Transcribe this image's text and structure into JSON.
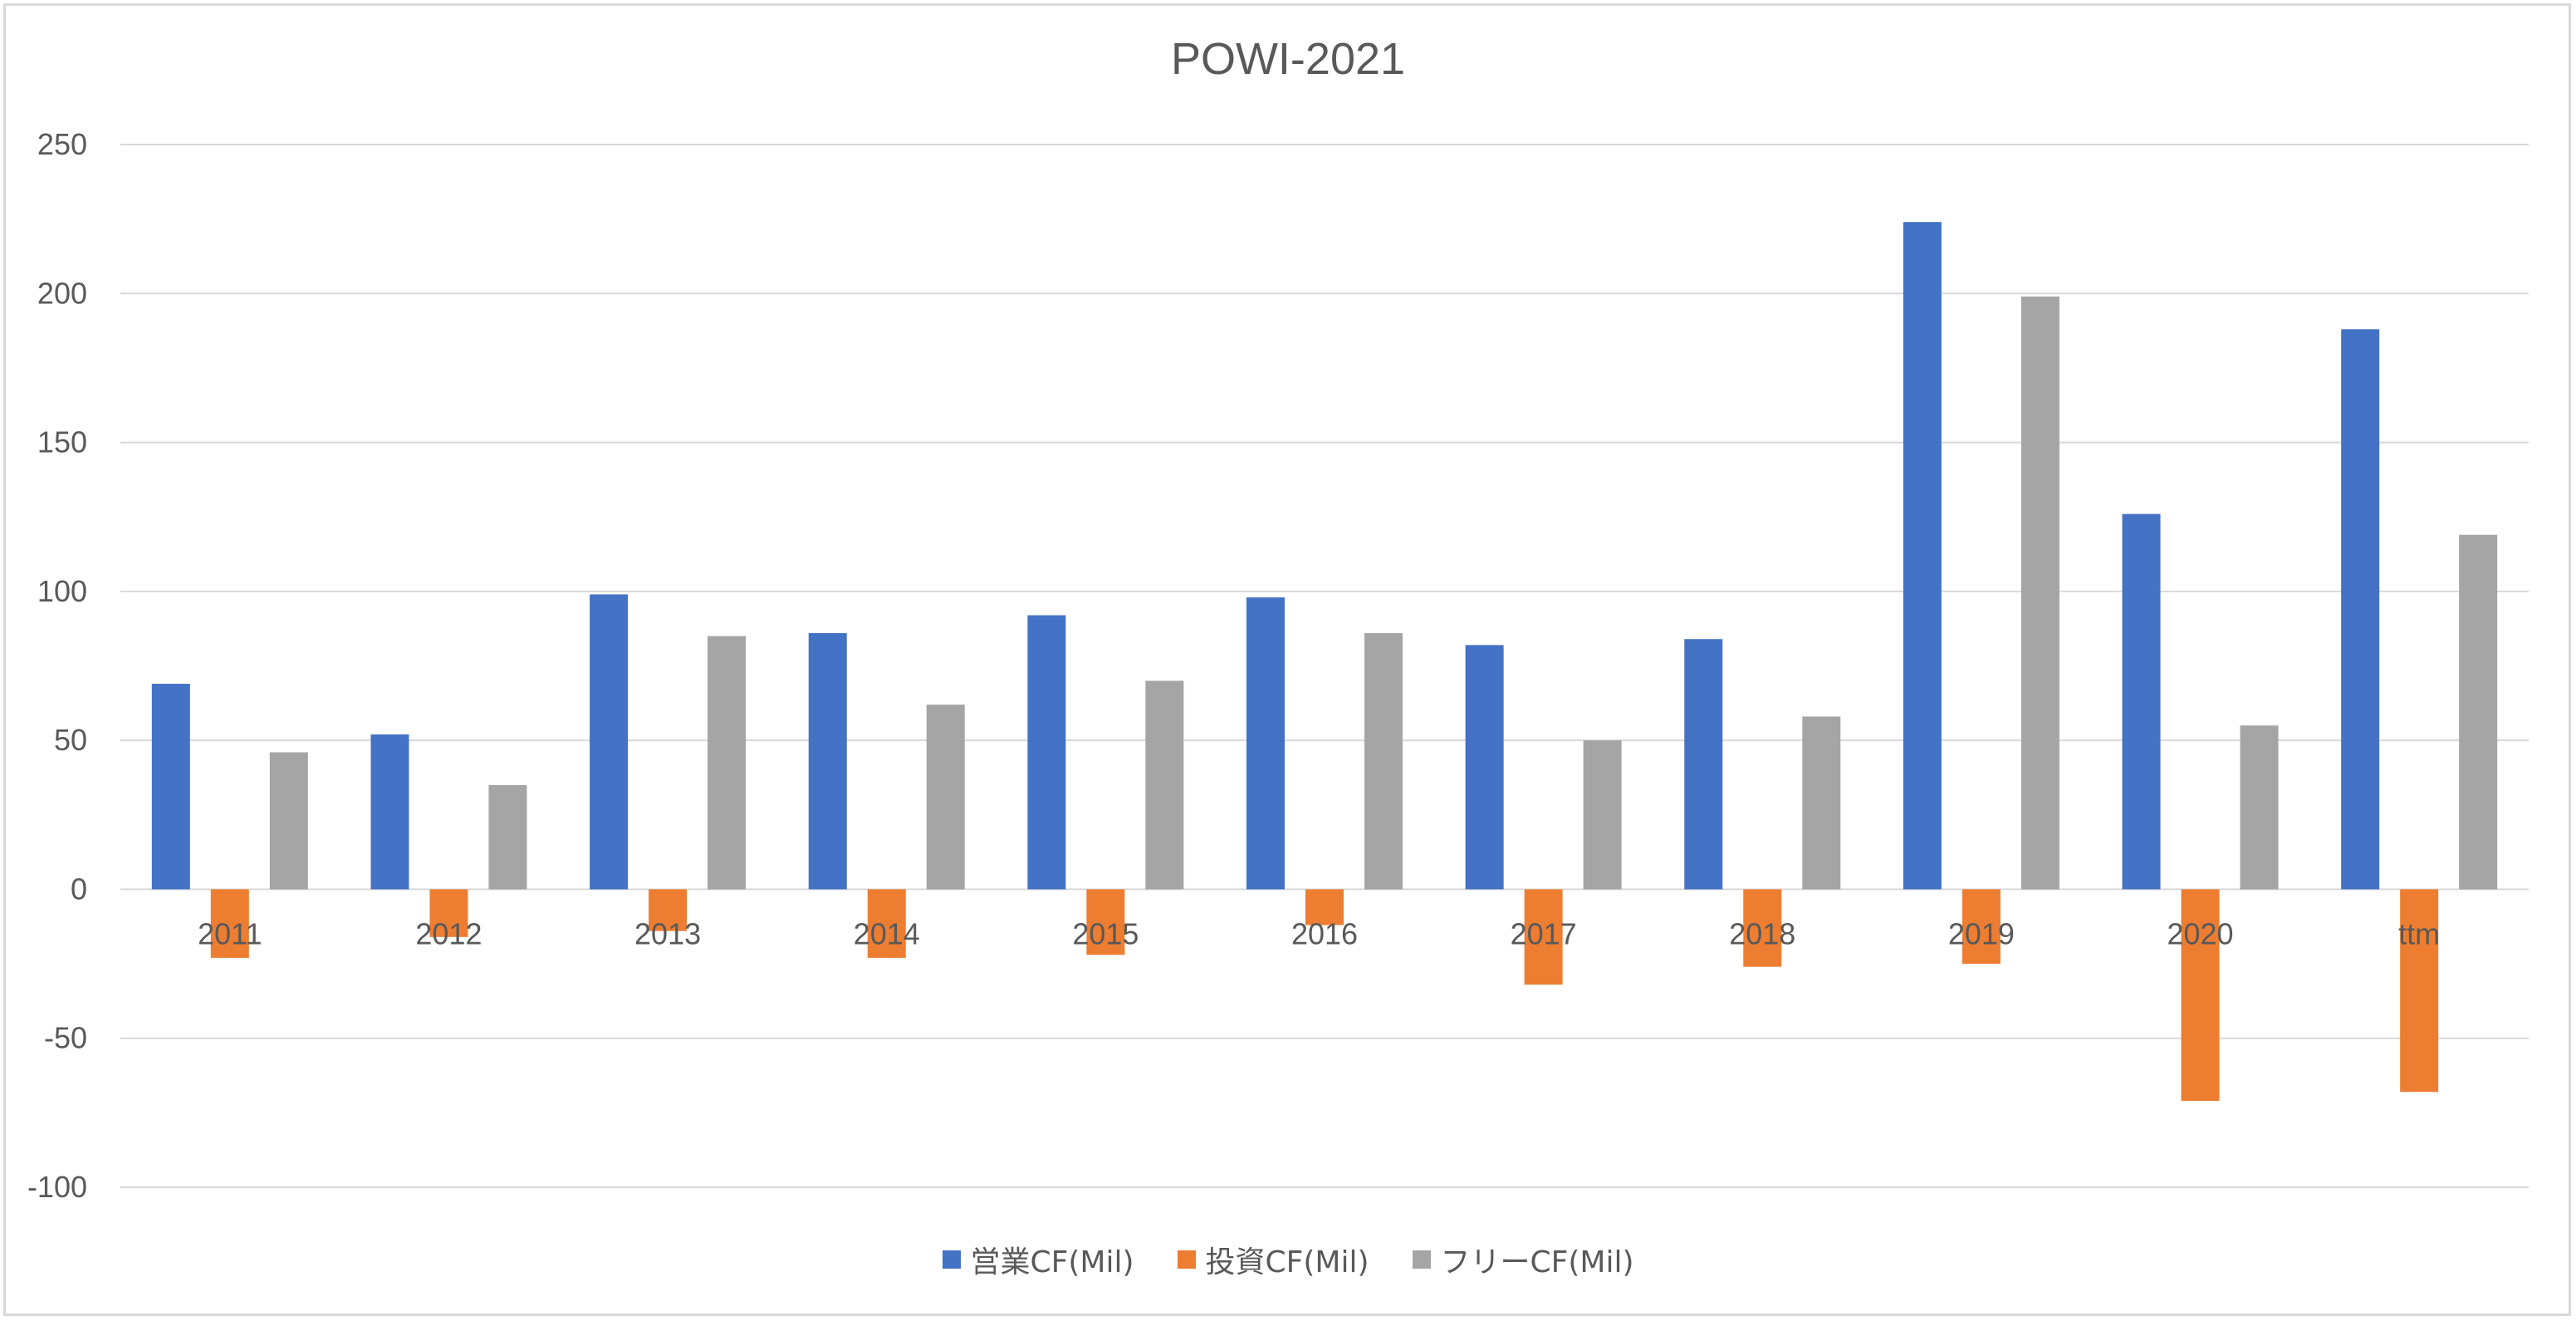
{
  "chart_data": {
    "type": "bar",
    "title": "POWI-2021",
    "categories": [
      "2011",
      "2012",
      "2013",
      "2014",
      "2015",
      "2016",
      "2017",
      "2018",
      "2019",
      "2020",
      "ttm"
    ],
    "series": [
      {
        "name": "営業CF(Mil)",
        "color": "#4472C4",
        "values": [
          69,
          52,
          99,
          86,
          92,
          98,
          82,
          84,
          224,
          126,
          188
        ]
      },
      {
        "name": "投資CF(Mil)",
        "color": "#ED7D31",
        "values": [
          -23,
          -16,
          -14,
          -23,
          -22,
          -12,
          -32,
          -26,
          -25,
          -71,
          -68
        ]
      },
      {
        "name": "フリーCF(Mil)",
        "color": "#A5A5A5",
        "values": [
          46,
          35,
          85,
          62,
          70,
          86,
          50,
          58,
          199,
          55,
          119
        ]
      }
    ],
    "ylim": [
      -100,
      250
    ],
    "yticks": [
      250,
      200,
      150,
      100,
      50,
      0,
      -50,
      -100
    ],
    "grid": true,
    "legend_position": "bottom",
    "xlabel": "",
    "ylabel": ""
  }
}
